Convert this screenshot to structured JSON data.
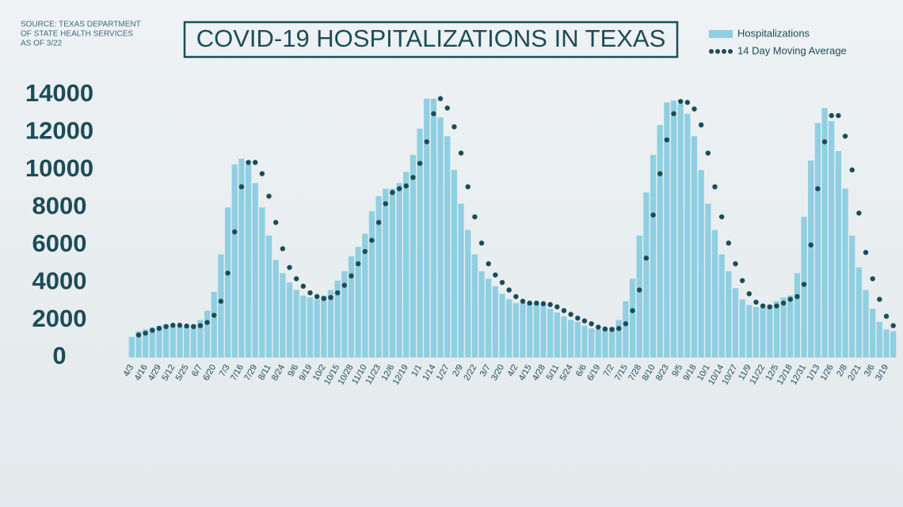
{
  "chart_data": {
    "type": "bar",
    "title": "COVID-19 HOSPITALIZATIONS IN TEXAS",
    "source_lines": [
      "SOURCE: TEXAS DEPARTMENT",
      "OF STATE HEALTH SERVICES",
      "AS OF 3/22"
    ],
    "categories": [
      "4/3",
      null,
      "4/16",
      null,
      "4/29",
      null,
      "5/12",
      null,
      "5/25",
      null,
      "6/7",
      null,
      "6/20",
      null,
      "7/3",
      null,
      "7/16",
      null,
      "7/29",
      null,
      "8/11",
      null,
      "8/24",
      null,
      "9/6",
      null,
      "9/19",
      null,
      "10/2",
      null,
      "10/15",
      null,
      "10/28",
      null,
      "11/10",
      null,
      "11/23",
      null,
      "12/6",
      null,
      "12/19",
      null,
      "1/1",
      null,
      "1/14",
      null,
      "1/27",
      null,
      "2/9",
      null,
      "2/22",
      null,
      "3/7",
      null,
      "3/20",
      null,
      "4/2",
      null,
      "4/15",
      null,
      "4/28",
      null,
      "5/11",
      null,
      "5/24",
      null,
      "6/6",
      null,
      "6/19",
      null,
      "7/2",
      null,
      "7/15",
      null,
      "7/28",
      null,
      "8/10",
      null,
      "8/23",
      null,
      "9/5",
      null,
      "9/18",
      null,
      "10/1",
      null,
      "10/14",
      null,
      "10/27",
      null,
      "11/9",
      null,
      "11/22",
      null,
      "12/5",
      null,
      "12/18",
      null,
      "12/31",
      null,
      "1/13",
      null,
      "1/26",
      null,
      "2/8",
      null,
      "2/21",
      null,
      "3/6",
      null,
      "3/19",
      null
    ],
    "series": [
      {
        "name": "Hospitalizations",
        "type": "bar",
        "color": "#8fcfe1",
        "values": [
          1100,
          1400,
          1500,
          1600,
          1700,
          1750,
          1700,
          1650,
          1650,
          1750,
          2000,
          2500,
          3500,
          5500,
          8000,
          10300,
          10600,
          10300,
          9300,
          8000,
          6500,
          5200,
          4500,
          4000,
          3600,
          3300,
          3200,
          3100,
          3300,
          3600,
          4100,
          4600,
          5400,
          5900,
          6600,
          7800,
          8600,
          9000,
          9000,
          9300,
          9900,
          10800,
          12200,
          13800,
          13800,
          12800,
          11800,
          10000,
          8200,
          6800,
          5500,
          4600,
          4200,
          3800,
          3400,
          3100,
          2900,
          2900,
          2900,
          2850,
          2800,
          2600,
          2400,
          2200,
          2000,
          1900,
          1700,
          1550,
          1500,
          1500,
          1600,
          2000,
          3000,
          4200,
          6500,
          8800,
          10800,
          12400,
          13600,
          13700,
          13500,
          13000,
          11800,
          10000,
          8200,
          6800,
          5500,
          4600,
          3700,
          3100,
          2800,
          2700,
          2700,
          2800,
          3000,
          3200,
          3300,
          4500,
          7500,
          10500,
          12500,
          13300,
          12600,
          11000,
          9000,
          6500,
          4800,
          3600,
          2600,
          1900,
          1500,
          1400
        ]
      },
      {
        "name": "14 Day Moving Average",
        "type": "dots",
        "color": "#1c4c57",
        "values": [
          null,
          1200,
          1300,
          1450,
          1550,
          1650,
          1720,
          1720,
          1680,
          1650,
          1700,
          1870,
          2250,
          3000,
          4500,
          6700,
          9100,
          10400,
          10400,
          9800,
          8600,
          7200,
          5800,
          4800,
          4200,
          3800,
          3450,
          3250,
          3150,
          3200,
          3450,
          3850,
          4350,
          5000,
          5650,
          6250,
          7200,
          8200,
          8800,
          9000,
          9150,
          9600,
          10350,
          11500,
          13000,
          13800,
          13300,
          12300,
          10900,
          9100,
          7500,
          6100,
          5000,
          4400,
          4000,
          3600,
          3250,
          3000,
          2900,
          2900,
          2870,
          2820,
          2700,
          2500,
          2300,
          2100,
          1950,
          1800,
          1620,
          1520,
          1500,
          1550,
          1800,
          2500,
          3600,
          5300,
          7600,
          9800,
          11600,
          13000,
          13650,
          13600,
          13250,
          12400,
          10900,
          9100,
          7500,
          6100,
          5000,
          4100,
          3400,
          2950,
          2750,
          2700,
          2750,
          2900,
          3100,
          3250,
          3900,
          6000,
          9000,
          11500,
          12900,
          12900,
          11800,
          10000,
          7700,
          5600,
          4200,
          3100,
          2200,
          1700
        ]
      }
    ],
    "ylim": [
      0,
      14000
    ],
    "yticks": [
      0,
      2000,
      4000,
      6000,
      8000,
      10000,
      12000,
      14000
    ],
    "grid": false
  }
}
